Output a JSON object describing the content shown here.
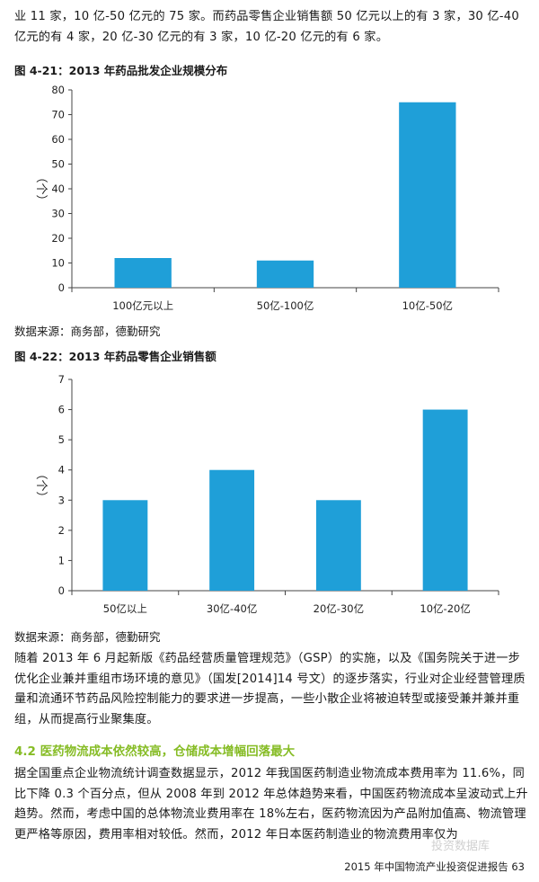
{
  "intro_text": "业 11 家，10 亿-50 亿元的 75 家。而药品零售企业销售额 50 亿元以上的有 3 家，30 亿-40 亿元的有 4 家，20 亿-30 亿元的有 3 家，10 亿-20 亿元的有 6 家。",
  "fig1": {
    "title": "图 4-21：2013 年药品批发企业规模分布",
    "source": "数据来源：商务部，德勤研究"
  },
  "fig2": {
    "title": "图 4-22：2013 年药品零售企业销售额",
    "source": "数据来源：商务部，德勤研究"
  },
  "chart_data": [
    {
      "type": "bar",
      "title": "图 4-21：2013 年药品批发企业规模分布",
      "categories": [
        "100亿元以上",
        "50亿-100亿",
        "10亿-50亿"
      ],
      "values": [
        12,
        11,
        75
      ],
      "ylabel": "（个）",
      "ylim": [
        0,
        80
      ],
      "yticks": [
        0,
        10,
        20,
        30,
        40,
        50,
        60,
        70,
        80
      ],
      "color": "#1f9fd8",
      "grid": false
    },
    {
      "type": "bar",
      "title": "图 4-22：2013 年药品零售企业销售额",
      "categories": [
        "50亿以上",
        "30亿-40亿",
        "20亿-30亿",
        "10亿-20亿"
      ],
      "values": [
        3,
        4,
        3,
        6
      ],
      "ylabel": "（个）",
      "ylim": [
        0,
        7
      ],
      "yticks": [
        0,
        1,
        2,
        3,
        4,
        5,
        6,
        7
      ],
      "color": "#1f9fd8",
      "grid": false
    }
  ],
  "body_para": "随着 2013 年 6 月起新版《药品经营质量管理规范》（GSP）的实施，以及《国务院关于进一步优化企业兼并重组市场环境的意见》（国发[2014]14 号文）的逐步落实，行业对企业经营管理质量和流通环节药品风险控制能力的要求进一步提高，一些小散企业将被迫转型或接受兼并兼并重组，从而提高行业聚集度。",
  "section_heading": "4.2 医药物流成本依然较高，仓储成本增幅回落最大",
  "section_para": "据全国重点企业物流统计调查数据显示，2012 年我国医药制造业物流成本费用率为 11.6%，同比下降 0.3 个百分点，但从 2008 年到 2012 年总体趋势来看，中国医药物流成本呈波动式上升趋势。然而，考虑中国的总体物流业费用率在 18%左右，医药物流因为产品附加值高、物流管理更严格等原因，费用率相对较低。然而，2012 年日本医药制造业的物流费用率仅为",
  "watermark": "投资数据库",
  "footer": "2015 年中国物流产业投资促进报告   63"
}
